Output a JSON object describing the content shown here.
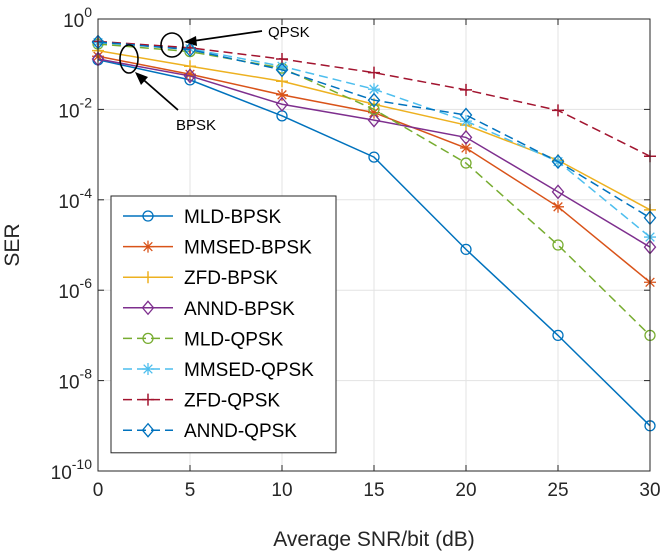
{
  "chart_data": {
    "type": "line",
    "title": "",
    "xlabel": "Average SNR/bit (dB)",
    "ylabel": "SER",
    "xlim": [
      0,
      30
    ],
    "ylim_exponents": [
      -10,
      0
    ],
    "yscale": "log",
    "grid": true,
    "legend_position": "bottom-left",
    "x_ticks": [
      "0",
      "5",
      "10",
      "15",
      "20",
      "25",
      "30"
    ],
    "y_ticks": [
      {
        "base": "10",
        "exp": "0"
      },
      {
        "base": "10",
        "exp": "-2"
      },
      {
        "base": "10",
        "exp": "-4"
      },
      {
        "base": "10",
        "exp": "-6"
      },
      {
        "base": "10",
        "exp": "-8"
      },
      {
        "base": "10",
        "exp": "-10"
      }
    ],
    "x": [
      0,
      5,
      10,
      15,
      20,
      25,
      30
    ],
    "series": [
      {
        "name": "MLD-BPSK",
        "color": "#0072BD",
        "dash": "solid",
        "marker": "circle",
        "values": [
          0.125,
          0.045,
          0.0072,
          0.00088,
          8e-06,
          1e-07,
          1e-09
        ]
      },
      {
        "name": "MMSED-BPSK",
        "color": "#D95319",
        "dash": "solid",
        "marker": "asterisk",
        "values": [
          0.15,
          0.06,
          0.021,
          0.0085,
          0.0014,
          7e-05,
          1.5e-06
        ]
      },
      {
        "name": "ZFD-BPSK",
        "color": "#EDB120",
        "dash": "solid",
        "marker": "plus",
        "values": [
          0.2,
          0.09,
          0.042,
          0.013,
          0.0045,
          0.00075,
          6e-05
        ]
      },
      {
        "name": "ANND-BPSK",
        "color": "#7E2F8E",
        "dash": "solid",
        "marker": "diamond",
        "values": [
          0.13,
          0.055,
          0.013,
          0.0058,
          0.0024,
          0.00015,
          9e-06
        ]
      },
      {
        "name": "MLD-QPSK",
        "color": "#77AC30",
        "dash": "dashed",
        "marker": "circle",
        "values": [
          0.28,
          0.19,
          0.082,
          0.01,
          0.00065,
          1e-05,
          1e-07
        ]
      },
      {
        "name": "MMSED-QPSK",
        "color": "#4DBEEE",
        "dash": "dashed",
        "marker": "asterisk",
        "values": [
          0.3,
          0.22,
          0.09,
          0.028,
          0.0055,
          0.0007,
          1.5e-05
        ]
      },
      {
        "name": "ZFD-QPSK",
        "color": "#A2142F",
        "dash": "dashed",
        "marker": "plus",
        "values": [
          0.32,
          0.23,
          0.13,
          0.065,
          0.027,
          0.0095,
          0.00092
        ]
      },
      {
        "name": "ANND-QPSK",
        "color": "#0072BD",
        "dash": "dashed",
        "marker": "diamond",
        "values": [
          0.31,
          0.21,
          0.075,
          0.016,
          0.0075,
          0.0007,
          4e-05
        ]
      }
    ],
    "annotations": [
      "QPSK",
      "BPSK"
    ]
  }
}
